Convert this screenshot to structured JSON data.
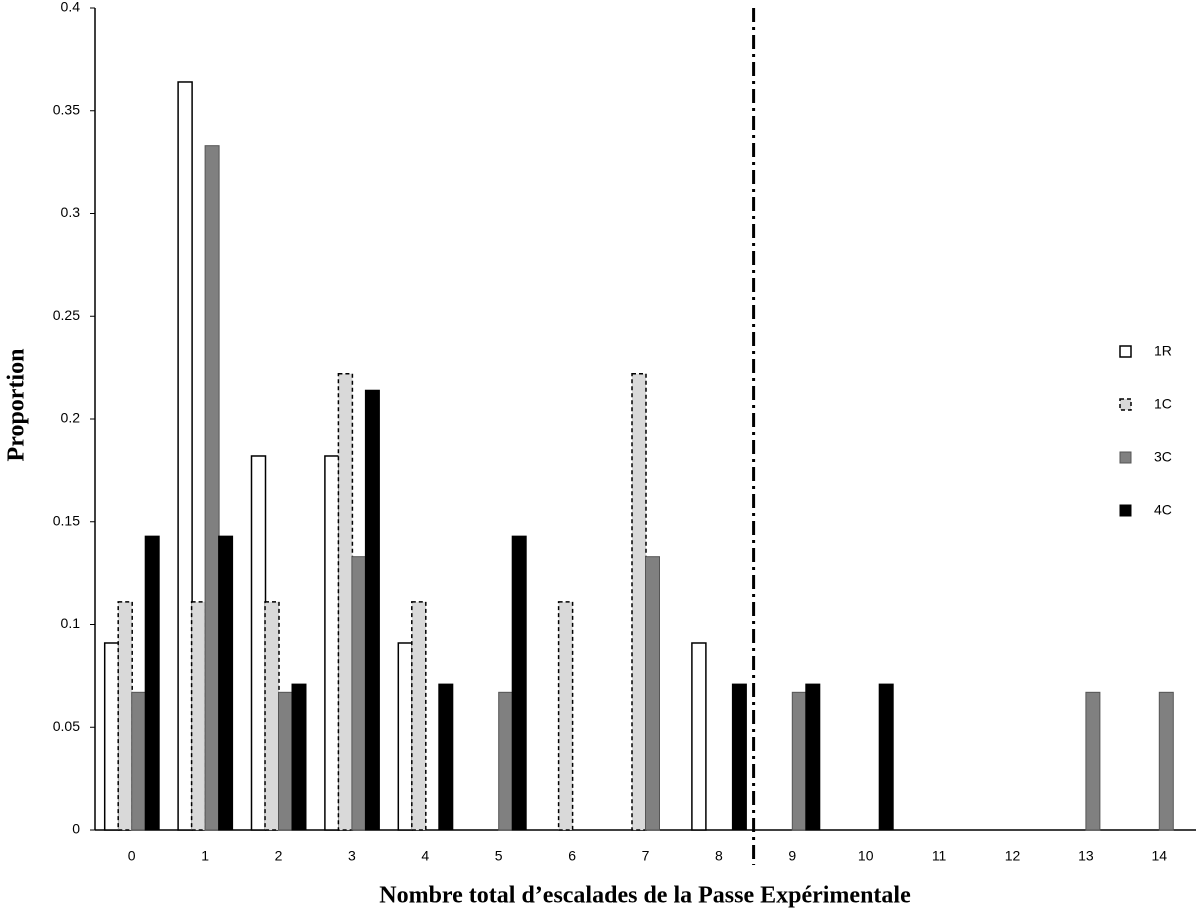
{
  "chart_data": {
    "type": "bar",
    "y_label": "Proportion",
    "x_label": "Nombre total d’escalades de la Passe Expérimentale",
    "categories": [
      "0",
      "1",
      "2",
      "3",
      "4",
      "5",
      "6",
      "7",
      "8",
      "9",
      "10",
      "11",
      "12",
      "13",
      "14"
    ],
    "series": [
      {
        "name": "1R",
        "color": "#ffffff",
        "values": [
          0.091,
          0.364,
          0.182,
          0.182,
          0.091,
          0,
          0,
          0,
          0.091,
          0,
          0,
          0,
          0,
          0,
          0
        ]
      },
      {
        "name": "1C",
        "color": "#d9d9d9",
        "values": [
          0.111,
          0.111,
          0.111,
          0.222,
          0.111,
          0,
          0.111,
          0.222,
          0,
          0,
          0,
          0,
          0,
          0,
          0
        ]
      },
      {
        "name": "3C",
        "color": "#808080",
        "values": [
          0.067,
          0.333,
          0.067,
          0.133,
          0,
          0.067,
          0,
          0.133,
          0,
          0.067,
          0,
          0,
          0,
          0.067,
          0.067
        ]
      },
      {
        "name": "4C",
        "color": "#000000",
        "values": [
          0.143,
          0.143,
          0.071,
          0.214,
          0.071,
          0.143,
          0,
          0,
          0.071,
          0.071,
          0.071,
          0,
          0,
          0,
          0
        ]
      }
    ],
    "ylim": [
      0,
      0.4
    ],
    "yticks": [
      0,
      0.05,
      0.1,
      0.15,
      0.2,
      0.25,
      0.3,
      0.35,
      0.4
    ],
    "grid": false,
    "legend": "right"
  }
}
